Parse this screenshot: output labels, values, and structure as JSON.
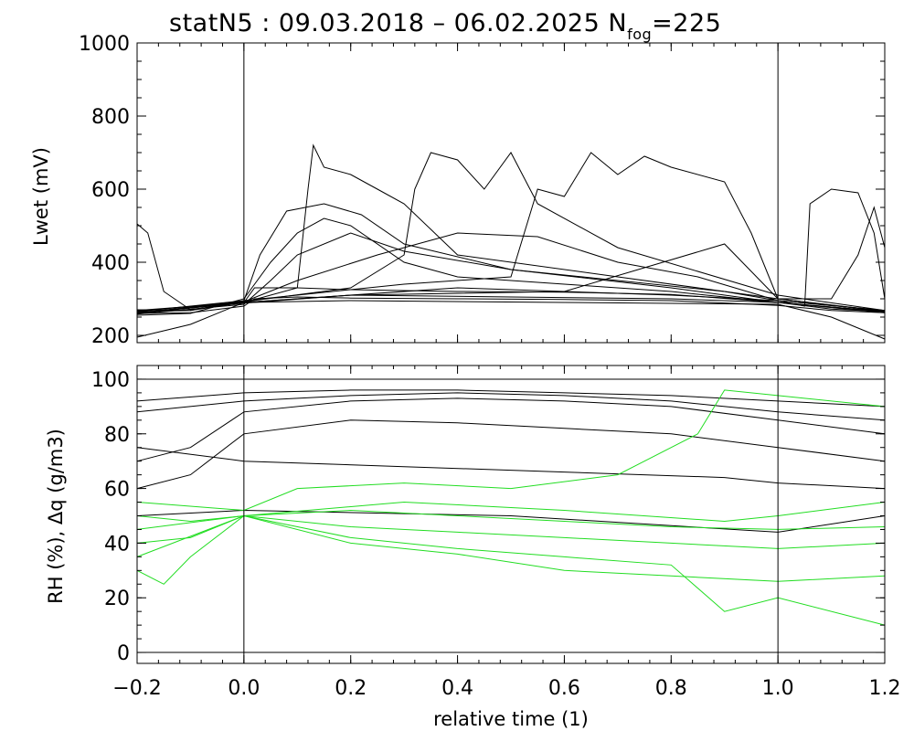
{
  "chart_data": [
    {
      "panel": "top",
      "type": "line",
      "title": {
        "main": "statN5 : 09.03.2018 – 06.02.2025 N",
        "subscript": "fog",
        "suffix": "=225"
      },
      "ylabel": "Lwet (mV)",
      "xlabel": "",
      "xlim": [
        -0.2,
        1.2
      ],
      "ylim": [
        180,
        1000
      ],
      "yticks": [
        200,
        400,
        600,
        800,
        1000
      ],
      "ytick_labels": [
        "200",
        "400",
        "600",
        "800",
        "1000"
      ],
      "xticks": [
        -0.2,
        0.0,
        0.2,
        0.4,
        0.6,
        0.8,
        1.0,
        1.2
      ],
      "vlines": [
        0.0,
        1.0
      ],
      "grid": false,
      "series": [
        {
          "color": "#000000",
          "x": [
            -0.2,
            -0.1,
            0.0,
            0.02,
            0.1,
            0.2,
            0.4,
            0.6,
            0.8,
            1.0,
            1.1,
            1.2
          ],
          "y": [
            265,
            268,
            290,
            330,
            330,
            325,
            320,
            318,
            312,
            290,
            272,
            265
          ]
        },
        {
          "color": "#000000",
          "x": [
            -0.2,
            -0.1,
            0.0,
            0.02,
            0.1,
            0.2,
            0.4,
            0.6,
            0.8,
            1.0,
            1.1,
            1.2
          ],
          "y": [
            260,
            262,
            280,
            300,
            305,
            302,
            300,
            298,
            295,
            282,
            268,
            262
          ]
        },
        {
          "color": "#000000",
          "x": [
            -0.2,
            -0.1,
            0.0,
            0.05,
            0.1,
            0.15,
            0.2,
            0.3,
            0.4,
            0.6,
            0.8,
            1.0,
            1.2
          ],
          "y": [
            255,
            260,
            300,
            400,
            480,
            520,
            500,
            400,
            360,
            340,
            320,
            290,
            265
          ]
        },
        {
          "color": "#000000",
          "x": [
            -0.2,
            -0.1,
            0.0,
            0.03,
            0.08,
            0.15,
            0.22,
            0.3,
            0.5,
            0.7,
            0.9,
            1.0,
            1.2
          ],
          "y": [
            270,
            268,
            295,
            420,
            540,
            560,
            530,
            450,
            380,
            350,
            320,
            295,
            268
          ]
        },
        {
          "color": "#000000",
          "x": [
            -0.2,
            -0.18,
            -0.15,
            -0.1,
            0.0,
            0.2,
            0.5,
            0.8,
            1.0,
            1.2
          ],
          "y": [
            505,
            480,
            320,
            270,
            290,
            310,
            305,
            300,
            290,
            265
          ]
        },
        {
          "color": "#000000",
          "x": [
            -0.2,
            0.0,
            0.1,
            0.12,
            0.13,
            0.15,
            0.2,
            0.25,
            0.3,
            0.4,
            1.0,
            1.2
          ],
          "y": [
            260,
            290,
            330,
            600,
            720,
            660,
            640,
            600,
            560,
            420,
            300,
            265
          ]
        },
        {
          "color": "#000000",
          "x": [
            -0.2,
            0.0,
            0.2,
            0.3,
            0.32,
            0.35,
            0.4,
            0.45,
            0.5,
            0.55,
            0.7,
            1.0,
            1.2
          ],
          "y": [
            262,
            292,
            330,
            420,
            600,
            700,
            680,
            600,
            700,
            560,
            440,
            310,
            268
          ]
        },
        {
          "color": "#000000",
          "x": [
            -0.2,
            0.0,
            0.3,
            0.5,
            0.55,
            0.6,
            0.65,
            0.7,
            0.75,
            0.8,
            0.9,
            0.95,
            1.0,
            1.2
          ],
          "y": [
            265,
            295,
            340,
            360,
            600,
            580,
            700,
            640,
            690,
            660,
            620,
            480,
            300,
            266
          ]
        },
        {
          "color": "#000000",
          "x": [
            -0.2,
            0.0,
            0.4,
            0.8,
            1.0,
            1.05,
            1.06,
            1.1,
            1.15,
            1.18,
            1.2
          ],
          "y": [
            268,
            290,
            330,
            310,
            295,
            280,
            560,
            600,
            590,
            480,
            300
          ]
        },
        {
          "color": "#000000",
          "x": [
            -0.2,
            0.0,
            0.2,
            0.6,
            0.9,
            1.0,
            1.1,
            1.15,
            1.18,
            1.2
          ],
          "y": [
            262,
            288,
            310,
            320,
            450,
            300,
            300,
            420,
            550,
            440
          ]
        },
        {
          "color": "#000000",
          "x": [
            -0.2,
            0.0,
            0.05,
            0.1,
            0.2,
            0.3,
            0.5,
            0.8,
            1.0,
            1.2
          ],
          "y": [
            258,
            285,
            350,
            420,
            480,
            430,
            380,
            330,
            290,
            262
          ]
        },
        {
          "color": "#000000",
          "x": [
            -0.2,
            0.0,
            0.1,
            0.25,
            0.4,
            0.55,
            0.7,
            0.85,
            1.0,
            1.2
          ],
          "y": [
            266,
            292,
            350,
            420,
            480,
            470,
            400,
            360,
            295,
            268
          ]
        },
        {
          "color": "#000000",
          "x": [
            -0.2,
            -0.1,
            0.0,
            0.2,
            0.6,
            1.0,
            1.1,
            1.2
          ],
          "y": [
            195,
            230,
            290,
            295,
            290,
            285,
            250,
            190
          ]
        }
      ]
    },
    {
      "panel": "bottom",
      "type": "line",
      "title": "",
      "ylabel": "RH (%), Δq (g/m3)",
      "xlabel": "relative time (1)",
      "xlim": [
        -0.2,
        1.2
      ],
      "ylim": [
        -4,
        105
      ],
      "yticks": [
        0,
        20,
        40,
        60,
        80,
        100
      ],
      "ytick_labels": [
        "0",
        "20",
        "40",
        "60",
        "80",
        "100"
      ],
      "xticks": [
        -0.2,
        0.0,
        0.2,
        0.4,
        0.6,
        0.8,
        1.0,
        1.2
      ],
      "xtick_labels": [
        "−0.2",
        "0.0",
        "0.2",
        "0.4",
        "0.6",
        "0.8",
        "1.0",
        "1.2"
      ],
      "vlines": [
        0.0,
        1.0
      ],
      "hlines": [
        0,
        100
      ],
      "grid": false,
      "series": [
        {
          "color": "#000000",
          "x": [
            -0.2,
            0.0,
            0.2,
            0.4,
            0.6,
            0.8,
            1.0,
            1.2
          ],
          "y": [
            92,
            95,
            96,
            96,
            95,
            94,
            92,
            90
          ]
        },
        {
          "color": "#000000",
          "x": [
            -0.2,
            0.0,
            0.2,
            0.4,
            0.6,
            0.8,
            1.0,
            1.2
          ],
          "y": [
            88,
            92,
            94,
            95,
            94,
            92,
            88,
            85
          ]
        },
        {
          "color": "#000000",
          "x": [
            -0.2,
            -0.1,
            0.0,
            0.2,
            0.4,
            0.6,
            0.8,
            1.0,
            1.2
          ],
          "y": [
            70,
            75,
            88,
            92,
            93,
            92,
            90,
            85,
            80
          ]
        },
        {
          "color": "#000000",
          "x": [
            -0.2,
            -0.1,
            0.0,
            0.2,
            0.4,
            0.6,
            0.8,
            1.0,
            1.2
          ],
          "y": [
            60,
            65,
            80,
            85,
            84,
            82,
            80,
            75,
            70
          ]
        },
        {
          "color": "#000000",
          "x": [
            -0.2,
            0.0,
            0.3,
            0.6,
            0.9,
            1.0,
            1.2
          ],
          "y": [
            75,
            70,
            68,
            66,
            64,
            62,
            60
          ]
        },
        {
          "color": "#000000",
          "x": [
            -0.2,
            0.0,
            0.5,
            1.0,
            1.2
          ],
          "y": [
            50,
            52,
            50,
            44,
            50
          ]
        },
        {
          "color": "#22dd22",
          "x": [
            -0.2,
            -0.1,
            0.0,
            0.2,
            0.4,
            0.6,
            0.8,
            1.0,
            1.2
          ],
          "y": [
            50,
            48,
            50,
            52,
            50,
            48,
            46,
            45,
            46
          ]
        },
        {
          "color": "#22dd22",
          "x": [
            -0.2,
            -0.1,
            0.0,
            0.2,
            0.4,
            0.6,
            0.8,
            1.0,
            1.2
          ],
          "y": [
            40,
            42,
            50,
            46,
            44,
            42,
            40,
            38,
            40
          ]
        },
        {
          "color": "#22dd22",
          "x": [
            -0.2,
            -0.15,
            -0.1,
            0.0,
            0.2,
            0.4,
            0.6,
            0.8,
            0.9,
            1.0,
            1.2
          ],
          "y": [
            30,
            25,
            35,
            50,
            42,
            38,
            35,
            32,
            15,
            20,
            10
          ]
        },
        {
          "color": "#22dd22",
          "x": [
            -0.2,
            0.0,
            0.1,
            0.3,
            0.5,
            0.7,
            0.85,
            0.9,
            1.0,
            1.2
          ],
          "y": [
            55,
            52,
            60,
            62,
            60,
            65,
            80,
            96,
            94,
            90
          ]
        },
        {
          "color": "#22dd22",
          "x": [
            -0.2,
            0.0,
            0.2,
            0.4,
            0.6,
            0.8,
            1.0,
            1.2
          ],
          "y": [
            45,
            50,
            40,
            36,
            30,
            28,
            26,
            28
          ]
        },
        {
          "color": "#22dd22",
          "x": [
            -0.2,
            0.0,
            0.3,
            0.6,
            0.9,
            1.0,
            1.2
          ],
          "y": [
            35,
            50,
            55,
            52,
            48,
            50,
            55
          ]
        }
      ]
    }
  ]
}
